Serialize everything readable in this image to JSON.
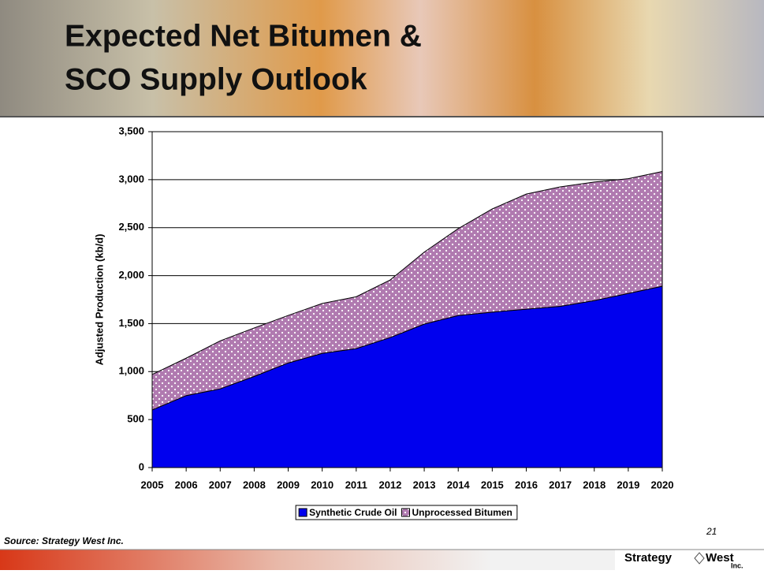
{
  "slide_title": [
    "Expected Net Bitumen &",
    "SCO Supply Outlook"
  ],
  "source": "Source: Strategy West Inc.",
  "page_number": "21",
  "logo": [
    "Strategy",
    "West",
    "Inc."
  ],
  "chart_data": {
    "type": "stacked_area",
    "y_label": "Adjusted Production (kb/d)",
    "x": [
      2005,
      2006,
      2007,
      2008,
      2009,
      2010,
      2011,
      2012,
      2013,
      2014,
      2015,
      2016,
      2017,
      2018,
      2019,
      2020
    ],
    "xlim": [
      2005,
      2020
    ],
    "ylim": [
      0,
      3500
    ],
    "yticks": [
      0,
      500,
      {
        "value": 1000,
        "label": "1,000"
      },
      {
        "value": 1500,
        "label": "1,500"
      },
      {
        "value": 2000,
        "label": "2,000"
      },
      {
        "value": 2500,
        "label": "2,500"
      },
      {
        "value": 3000,
        "label": "3,000"
      },
      {
        "value": 3500,
        "label": "3,500"
      }
    ],
    "grid": true,
    "series": [
      {
        "name": "Synthetic Crude Oil",
        "color": "#0000ee",
        "values": [
          600,
          750,
          820,
          950,
          1090,
          1190,
          1240,
          1355,
          1495,
          1585,
          1620,
          1650,
          1680,
          1740,
          1815,
          1890
        ]
      },
      {
        "name": "Unprocessed Bitumen",
        "color": "#b07ab0",
        "values": [
          370,
          390,
          500,
          505,
          495,
          520,
          540,
          600,
          750,
          905,
          1075,
          1200,
          1245,
          1235,
          1195,
          1195
        ]
      }
    ]
  }
}
